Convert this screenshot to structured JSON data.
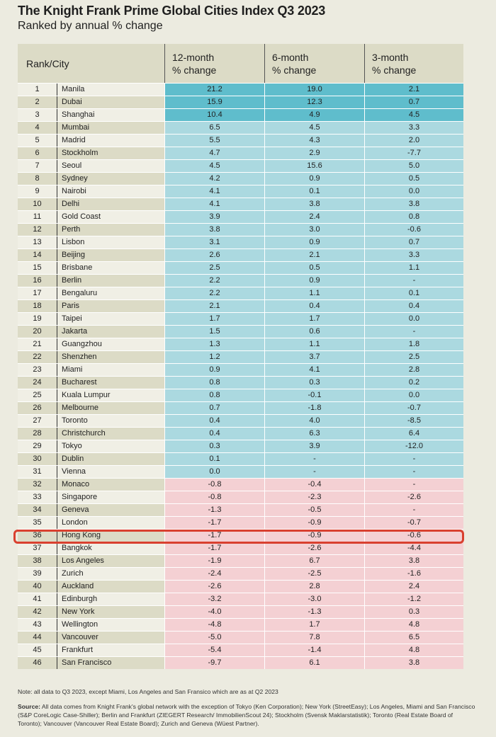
{
  "title": "The Knight Frank Prime Global Cities Index Q3 2023",
  "subtitle": "Ranked by annual % change",
  "headers": {
    "rank_city": "Rank/City",
    "m12": [
      "12-month",
      "% change"
    ],
    "m6": [
      "6-month",
      "% change"
    ],
    "m3": [
      "3-month",
      "% change"
    ]
  },
  "colors": {
    "top": "#5fbdcc",
    "positive": "#abd9e0",
    "negative": "#f4d0d3",
    "highlight": "#d9402f"
  },
  "highlighted_city": "Hong Kong",
  "rows": [
    {
      "rank": "1",
      "city": "Manila",
      "m12": "21.2",
      "m6": "19.0",
      "m3": "2.1",
      "band": "top"
    },
    {
      "rank": "2",
      "city": "Dubai",
      "m12": "15.9",
      "m6": "12.3",
      "m3": "0.7",
      "band": "top"
    },
    {
      "rank": "3",
      "city": "Shanghai",
      "m12": "10.4",
      "m6": "4.9",
      "m3": "4.5",
      "band": "top"
    },
    {
      "rank": "4",
      "city": "Mumbai",
      "m12": "6.5",
      "m6": "4.5",
      "m3": "3.3",
      "band": "pos"
    },
    {
      "rank": "5",
      "city": "Madrid",
      "m12": "5.5",
      "m6": "4.3",
      "m3": "2.0",
      "band": "pos"
    },
    {
      "rank": "6",
      "city": "Stockholm",
      "m12": "4.7",
      "m6": "2.9",
      "m3": "-7.7",
      "band": "pos"
    },
    {
      "rank": "7",
      "city": "Seoul",
      "m12": "4.5",
      "m6": "15.6",
      "m3": "5.0",
      "band": "pos"
    },
    {
      "rank": "8",
      "city": "Sydney",
      "m12": "4.2",
      "m6": "0.9",
      "m3": "0.5",
      "band": "pos"
    },
    {
      "rank": "9",
      "city": "Nairobi",
      "m12": "4.1",
      "m6": "0.1",
      "m3": "0.0",
      "band": "pos"
    },
    {
      "rank": "10",
      "city": "Delhi",
      "m12": "4.1",
      "m6": "3.8",
      "m3": "3.8",
      "band": "pos"
    },
    {
      "rank": "11",
      "city": "Gold Coast",
      "m12": "3.9",
      "m6": "2.4",
      "m3": "0.8",
      "band": "pos"
    },
    {
      "rank": "12",
      "city": "Perth",
      "m12": "3.8",
      "m6": "3.0",
      "m3": "-0.6",
      "band": "pos"
    },
    {
      "rank": "13",
      "city": "Lisbon",
      "m12": "3.1",
      "m6": "0.9",
      "m3": "0.7",
      "band": "pos"
    },
    {
      "rank": "14",
      "city": "Beijing",
      "m12": "2.6",
      "m6": "2.1",
      "m3": "3.3",
      "band": "pos"
    },
    {
      "rank": "15",
      "city": "Brisbane",
      "m12": "2.5",
      "m6": "0.5",
      "m3": "1.1",
      "band": "pos"
    },
    {
      "rank": "16",
      "city": "Berlin",
      "m12": "2.2",
      "m6": "0.9",
      "m3": "-",
      "band": "pos"
    },
    {
      "rank": "17",
      "city": "Bengaluru",
      "m12": "2.2",
      "m6": "1.1",
      "m3": "0.1",
      "band": "pos"
    },
    {
      "rank": "18",
      "city": "Paris",
      "m12": "2.1",
      "m6": "0.4",
      "m3": "0.4",
      "band": "pos"
    },
    {
      "rank": "19",
      "city": "Taipei",
      "m12": "1.7",
      "m6": "1.7",
      "m3": "0.0",
      "band": "pos"
    },
    {
      "rank": "20",
      "city": "Jakarta",
      "m12": "1.5",
      "m6": "0.6",
      "m3": "-",
      "band": "pos"
    },
    {
      "rank": "21",
      "city": "Guangzhou",
      "m12": "1.3",
      "m6": "1.1",
      "m3": "1.8",
      "band": "pos"
    },
    {
      "rank": "22",
      "city": "Shenzhen",
      "m12": "1.2",
      "m6": "3.7",
      "m3": "2.5",
      "band": "pos"
    },
    {
      "rank": "23",
      "city": "Miami",
      "m12": "0.9",
      "m6": "4.1",
      "m3": "2.8",
      "band": "pos"
    },
    {
      "rank": "24",
      "city": "Bucharest",
      "m12": "0.8",
      "m6": "0.3",
      "m3": "0.2",
      "band": "pos"
    },
    {
      "rank": "25",
      "city": "Kuala Lumpur",
      "m12": "0.8",
      "m6": "-0.1",
      "m3": "0.0",
      "band": "pos"
    },
    {
      "rank": "26",
      "city": "Melbourne",
      "m12": "0.7",
      "m6": "-1.8",
      "m3": "-0.7",
      "band": "pos"
    },
    {
      "rank": "27",
      "city": "Toronto",
      "m12": "0.4",
      "m6": "4.0",
      "m3": "-8.5",
      "band": "pos"
    },
    {
      "rank": "28",
      "city": "Christchurch",
      "m12": "0.4",
      "m6": "6.3",
      "m3": "6.4",
      "band": "pos"
    },
    {
      "rank": "29",
      "city": "Tokyo",
      "m12": "0.3",
      "m6": "3.9",
      "m3": "-12.0",
      "band": "pos"
    },
    {
      "rank": "30",
      "city": "Dublin",
      "m12": "0.1",
      "m6": "-",
      "m3": "-",
      "band": "pos"
    },
    {
      "rank": "31",
      "city": "Vienna",
      "m12": "0.0",
      "m6": "-",
      "m3": "-",
      "band": "pos"
    },
    {
      "rank": "32",
      "city": "Monaco",
      "m12": "-0.8",
      "m6": "-0.4",
      "m3": "-",
      "band": "neg"
    },
    {
      "rank": "33",
      "city": "Singapore",
      "m12": "-0.8",
      "m6": "-2.3",
      "m3": "-2.6",
      "band": "neg"
    },
    {
      "rank": "34",
      "city": "Geneva",
      "m12": "-1.3",
      "m6": "-0.5",
      "m3": "-",
      "band": "neg"
    },
    {
      "rank": "35",
      "city": "London",
      "m12": "-1.7",
      "m6": "-0.9",
      "m3": "-0.7",
      "band": "neg"
    },
    {
      "rank": "36",
      "city": "Hong Kong",
      "m12": "-1.7",
      "m6": "-0.9",
      "m3": "-0.6",
      "band": "neg"
    },
    {
      "rank": "37",
      "city": "Bangkok",
      "m12": "-1.7",
      "m6": "-2.6",
      "m3": "-4.4",
      "band": "neg"
    },
    {
      "rank": "38",
      "city": "Los Angeles",
      "m12": "-1.9",
      "m6": "6.7",
      "m3": "3.8",
      "band": "neg"
    },
    {
      "rank": "39",
      "city": "Zurich",
      "m12": "-2.4",
      "m6": "-2.5",
      "m3": "-1.6",
      "band": "neg"
    },
    {
      "rank": "40",
      "city": "Auckland",
      "m12": "-2.6",
      "m6": "2.8",
      "m3": "2.4",
      "band": "neg"
    },
    {
      "rank": "41",
      "city": "Edinburgh",
      "m12": "-3.2",
      "m6": "-3.0",
      "m3": "-1.2",
      "band": "neg"
    },
    {
      "rank": "42",
      "city": "New York",
      "m12": "-4.0",
      "m6": "-1.3",
      "m3": "0.3",
      "band": "neg"
    },
    {
      "rank": "43",
      "city": "Wellington",
      "m12": "-4.8",
      "m6": "1.7",
      "m3": "4.8",
      "band": "neg"
    },
    {
      "rank": "44",
      "city": "Vancouver",
      "m12": "-5.0",
      "m6": "7.8",
      "m3": "6.5",
      "band": "neg"
    },
    {
      "rank": "45",
      "city": "Frankfurt",
      "m12": "-5.4",
      "m6": "-1.4",
      "m3": "4.8",
      "band": "neg"
    },
    {
      "rank": "46",
      "city": "San Francisco",
      "m12": "-9.7",
      "m6": "6.1",
      "m3": "3.8",
      "band": "neg"
    }
  ],
  "note": "Note: all data to Q3 2023, except Miami, Los Angeles and San Fransico which are as at Q2 2023",
  "source_label": "Source:",
  "source_text": " All data comes from Knight Frank's global network with the exception of Tokyo (Ken Corporation); New York (StreetEasy); Los Angeles, Miami and San Francisco (S&P CoreLogic Case-Shiller); Berlin and Frankfurt (ZIEGERT Research/ ImmobilienScout 24); Stockholm (Svensk Maklarstatistik); Toronto (Real Estate Board of Toronto); Vancouver (Vancouver Real Estate Board); Zurich and Geneva (Wüest Partner)."
}
